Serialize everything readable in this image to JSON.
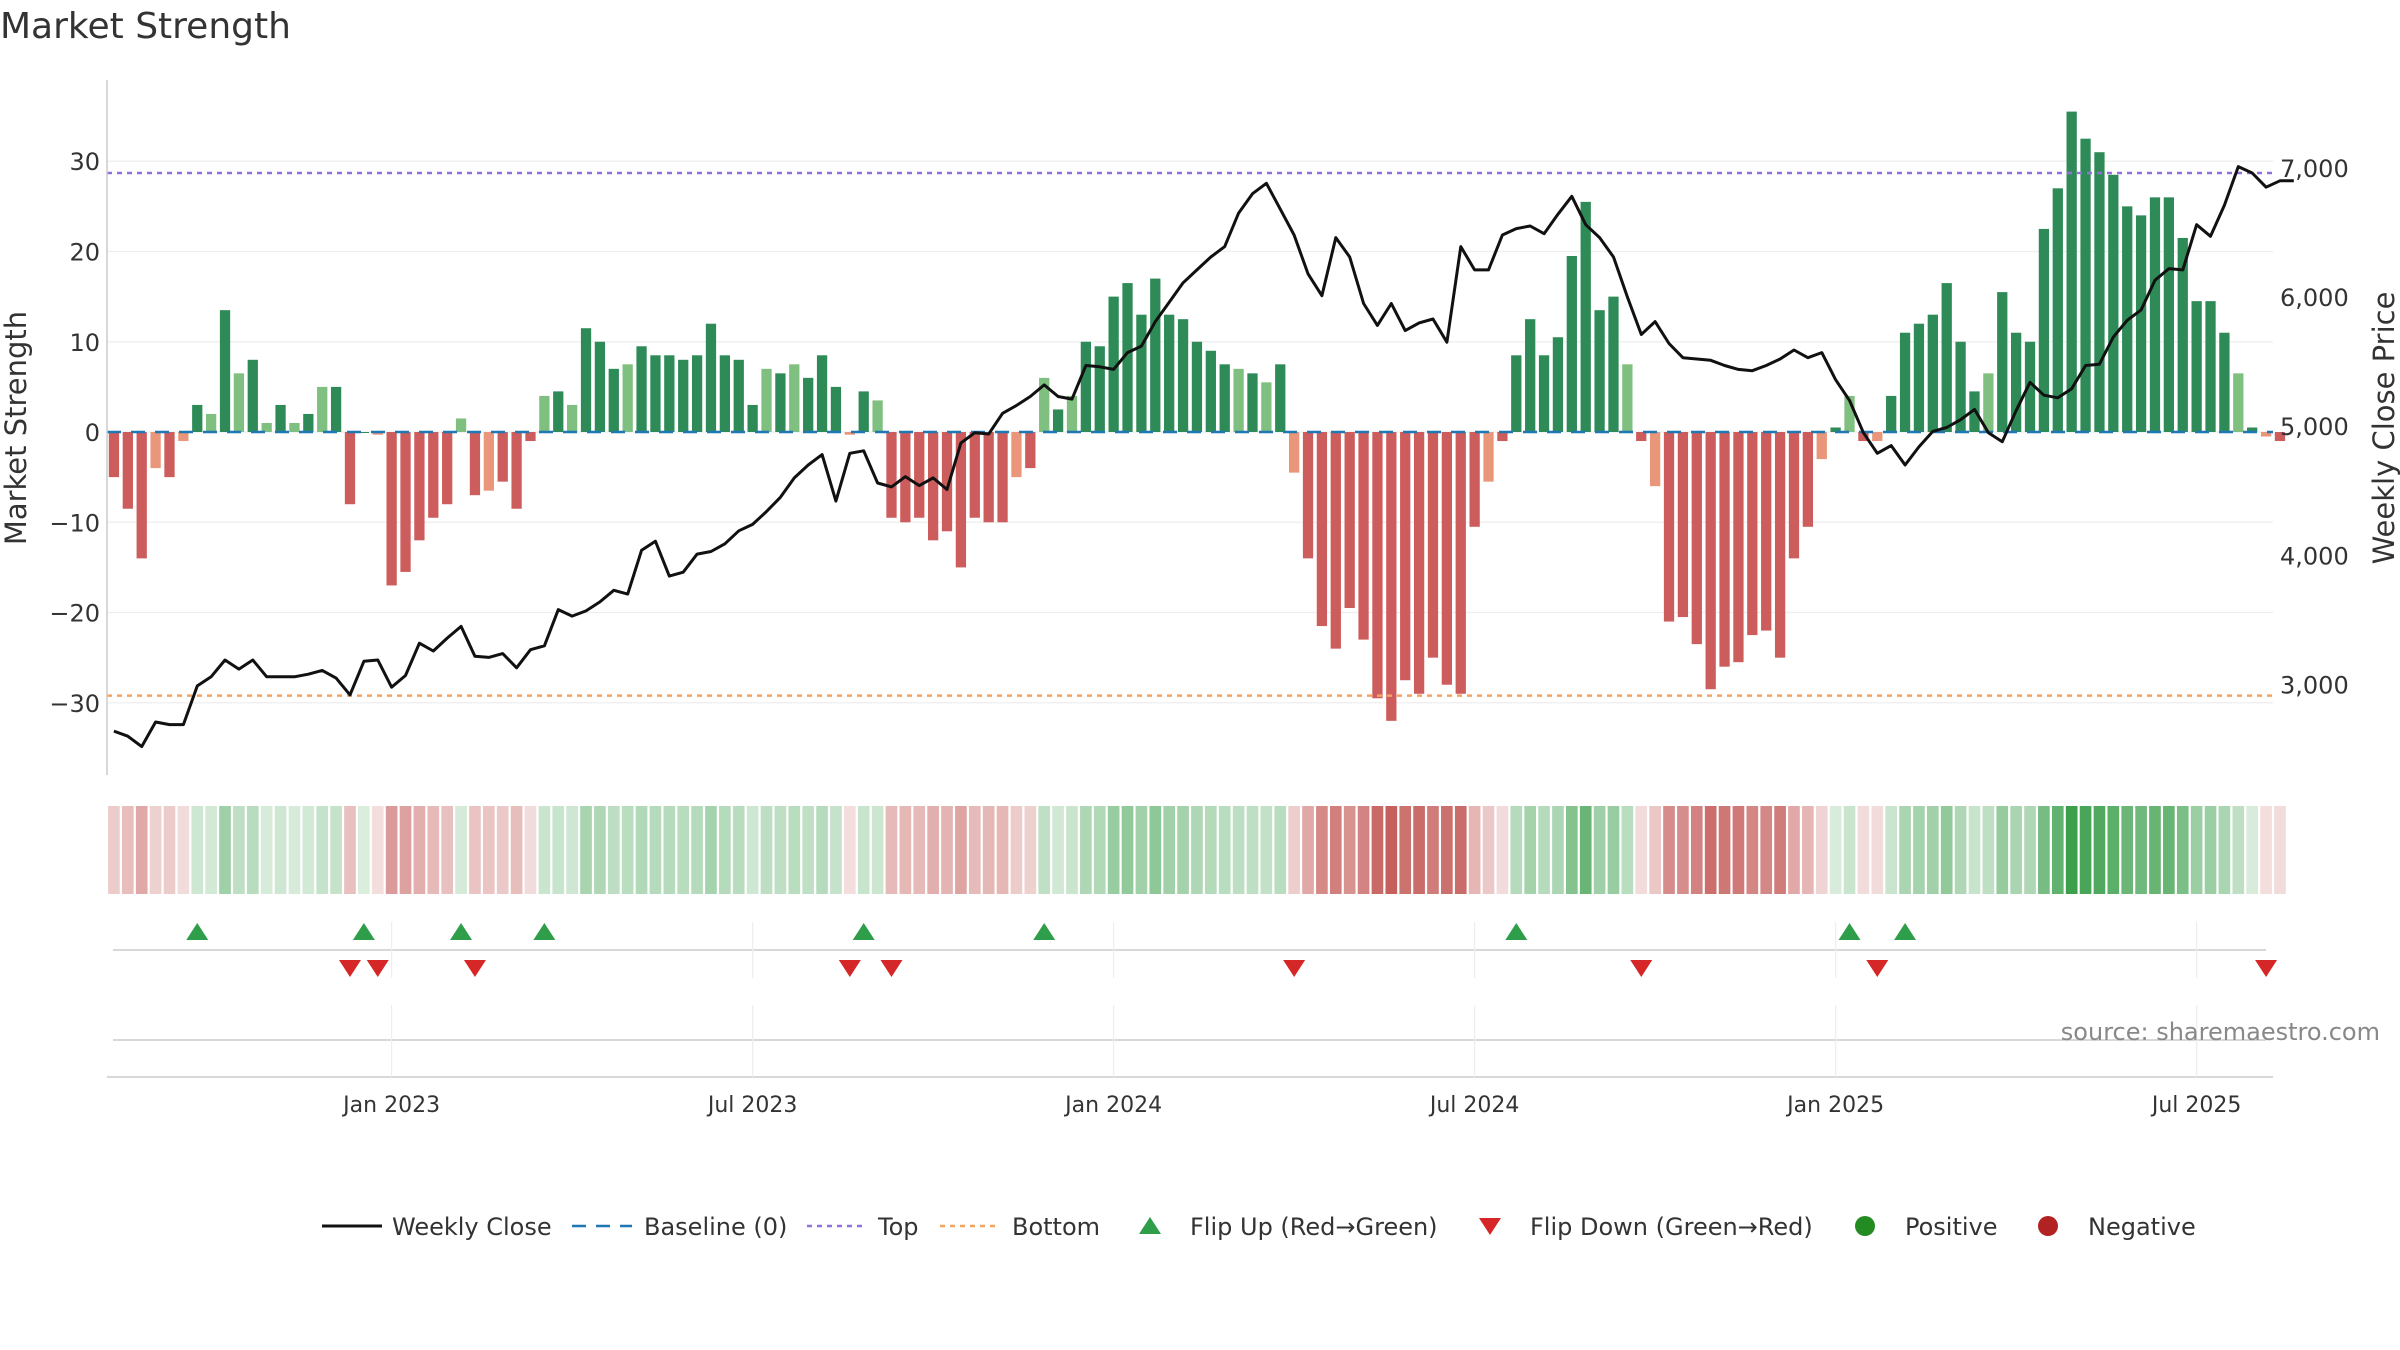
{
  "chart_data": {
    "type": "bar+line",
    "title": "Market Strength",
    "ylabel": "Market Strength",
    "y2label": "Weekly Close Price",
    "ylim": [
      -38,
      39
    ],
    "y2lim": [
      2300,
      7680
    ],
    "yticks": [
      {
        "v": 30,
        "label": "30"
      },
      {
        "v": 20,
        "label": "20"
      },
      {
        "v": 10,
        "label": "10"
      },
      {
        "v": 0,
        "label": "0"
      },
      {
        "v": -10,
        "label": "−10"
      },
      {
        "v": -20,
        "label": "−20"
      },
      {
        "v": -30,
        "label": "−30"
      }
    ],
    "y2ticks": [
      {
        "v": 7000,
        "label": "7,000"
      },
      {
        "v": 6000,
        "label": "6,000"
      },
      {
        "v": 5000,
        "label": "5,000"
      },
      {
        "v": 4000,
        "label": "4,000"
      },
      {
        "v": 3000,
        "label": "3,000"
      }
    ],
    "xticks": [
      {
        "week": 20.5,
        "label": "Jan 2023"
      },
      {
        "week": 46.5,
        "label": "Jul 2023"
      },
      {
        "week": 72.5,
        "label": "Jan 2024"
      },
      {
        "week": 98.5,
        "label": "Jul 2024"
      },
      {
        "week": 124.5,
        "label": "Jan 2025"
      },
      {
        "week": 150.5,
        "label": "Jul 2025"
      }
    ],
    "weeks": 156,
    "top_threshold": 28.7,
    "bottom_threshold": -29.2,
    "strength": [
      -5,
      -8.5,
      -14,
      -4,
      -5,
      -1,
      3,
      2,
      13.5,
      6.5,
      8,
      1,
      3,
      1,
      2,
      5,
      5,
      -8,
      0,
      -0.3,
      -17,
      -15.5,
      -12,
      -9.5,
      -8,
      1.5,
      -7,
      -6.5,
      -5.5,
      -8.5,
      -1,
      4,
      4.5,
      3,
      11.5,
      10,
      7,
      7.5,
      9.5,
      8.5,
      8.5,
      8,
      8.5,
      12,
      8.5,
      8,
      3,
      7,
      6.5,
      7.5,
      6,
      8.5,
      5,
      -0.3,
      4.5,
      3.5,
      -9.5,
      -10,
      -9.5,
      -12,
      -11,
      -15,
      -9.5,
      -10,
      -10,
      -5,
      -4,
      6,
      2.5,
      4,
      10,
      9.5,
      15,
      16.5,
      13,
      17,
      13,
      12.5,
      10,
      9,
      7.5,
      7,
      6.5,
      5.5,
      7.5,
      -4.5,
      -14,
      -21.5,
      -24,
      -19.5,
      -23,
      -29.5,
      -32,
      -27.5,
      -29,
      -25,
      -28,
      -29,
      -10.5,
      -5.5,
      -1,
      8.5,
      12.5,
      8.5,
      10.5,
      19.5,
      25.5,
      13.5,
      15,
      7.5,
      -1,
      -6,
      -21,
      -20.5,
      -23.5,
      -28.5,
      -26,
      -25.5,
      -22.5,
      -22,
      -25,
      -14,
      -10.5,
      -3,
      0.5,
      4,
      -1,
      -1,
      4,
      11,
      12,
      13,
      16.5,
      10,
      4.5,
      6.5,
      15.5,
      11,
      10,
      22.5,
      27,
      35.5,
      32.5,
      31,
      28.5,
      25,
      24,
      26,
      26,
      21.5,
      14.5,
      14.5,
      11,
      6.5,
      0.5,
      -0.5,
      -1
    ],
    "close": [
      2640,
      2600,
      2520,
      2710,
      2690,
      2690,
      2990,
      3060,
      3190,
      3120,
      3190,
      3060,
      3060,
      3060,
      3080,
      3110,
      3050,
      2920,
      3180,
      3190,
      2980,
      3070,
      3320,
      3260,
      3360,
      3450,
      3220,
      3210,
      3240,
      3130,
      3270,
      3300,
      3580,
      3530,
      3570,
      3640,
      3730,
      3700,
      4040,
      4110,
      3840,
      3870,
      4010,
      4030,
      4090,
      4190,
      4240,
      4340,
      4450,
      4600,
      4700,
      4780,
      4420,
      4790,
      4810,
      4560,
      4530,
      4610,
      4540,
      4600,
      4510,
      4870,
      4950,
      4940,
      5100,
      5160,
      5230,
      5320,
      5230,
      5210,
      5470,
      5460,
      5440,
      5570,
      5620,
      5810,
      5960,
      6110,
      6210,
      6310,
      6390,
      6650,
      6800,
      6880,
      6680,
      6480,
      6180,
      6010,
      6460,
      6310,
      5950,
      5780,
      5950,
      5740,
      5800,
      5830,
      5650,
      6390,
      6210,
      6210,
      6480,
      6530,
      6550,
      6490,
      6640,
      6780,
      6560,
      6460,
      6310,
      6000,
      5710,
      5810,
      5640,
      5530,
      5520,
      5510,
      5470,
      5440,
      5430,
      5470,
      5520,
      5590,
      5530,
      5570,
      5360,
      5200,
      4950,
      4790,
      4850,
      4700,
      4840,
      4960,
      4990,
      5050,
      5130,
      4950,
      4880,
      5120,
      5340,
      5240,
      5220,
      5290,
      5470,
      5480,
      5690,
      5820,
      5900,
      6130,
      6220,
      6210,
      6560,
      6470,
      6710,
      7010,
      6960,
      6850,
      6900,
      6900
    ],
    "flip_up": [
      6,
      18,
      25,
      31,
      54,
      67,
      101,
      125,
      129
    ],
    "flip_down": [
      17,
      19,
      26,
      53,
      56,
      85,
      110,
      127,
      155
    ],
    "legend": [
      {
        "key": "weekly-close",
        "label": "Weekly Close"
      },
      {
        "key": "baseline",
        "label": "Baseline (0)"
      },
      {
        "key": "top",
        "label": "Top"
      },
      {
        "key": "bottom",
        "label": "Bottom"
      },
      {
        "key": "flip-up",
        "label": "Flip Up (Red→Green)"
      },
      {
        "key": "flip-down",
        "label": "Flip Down (Green→Red)"
      },
      {
        "key": "positive",
        "label": "Positive"
      },
      {
        "key": "negative",
        "label": "Negative"
      }
    ],
    "source": "source: sharemaestro.com"
  },
  "colors": {
    "pos_dark": "#2e8b57",
    "pos_light": "#7fbf7f",
    "neg_dark": "#cd5c5c",
    "neg_light": "#e9967a",
    "heat_pos": "#3a9e4a",
    "heat_neg": "#c0504d",
    "top_line": "#9370db",
    "bottom_line": "#f4a460",
    "baseline": "#1f77b4",
    "close_line": "#111111",
    "flip_up": "#2e9e4a",
    "flip_down": "#d62728",
    "positive_dot": "#228b22",
    "negative_dot": "#b22222",
    "grid": "#eeeeee",
    "axis_text": "#333333",
    "source_text": "#888888"
  }
}
